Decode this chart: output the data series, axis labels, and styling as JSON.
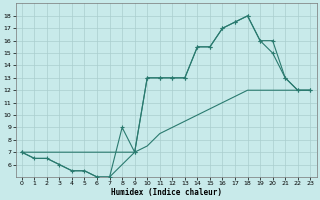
{
  "xlabel": "Humidex (Indice chaleur)",
  "line_color": "#2a7a6f",
  "bg_color": "#c8eaea",
  "grid_color": "#aacece",
  "xlim": [
    -0.5,
    23.5
  ],
  "ylim": [
    5,
    19
  ],
  "yticks": [
    6,
    7,
    8,
    9,
    10,
    11,
    12,
    13,
    14,
    15,
    16,
    17,
    18
  ],
  "xticks": [
    0,
    1,
    2,
    3,
    4,
    5,
    6,
    7,
    8,
    9,
    10,
    11,
    12,
    13,
    14,
    15,
    16,
    17,
    18,
    19,
    20,
    21,
    22,
    23
  ],
  "line1_x": [
    0,
    1,
    2,
    3,
    4,
    5,
    6,
    7,
    8,
    9,
    10,
    11,
    12,
    13,
    14,
    15,
    16,
    17,
    18,
    19,
    20,
    21,
    22,
    23
  ],
  "line1_y": [
    7,
    6.5,
    6.5,
    6,
    5.5,
    5.5,
    5,
    5,
    9,
    7,
    13,
    13,
    13,
    13,
    15.5,
    15.5,
    17,
    17.5,
    18,
    16,
    15,
    13,
    12,
    12
  ],
  "line2_x": [
    0,
    9,
    10,
    11,
    12,
    13,
    14,
    15,
    16,
    17,
    18,
    19,
    20,
    21,
    22,
    23
  ],
  "line2_y": [
    7,
    7,
    13,
    13,
    13,
    13,
    15.5,
    15.5,
    17,
    17.5,
    18,
    16,
    16,
    13,
    12,
    12
  ],
  "line3_x": [
    0,
    1,
    2,
    3,
    4,
    5,
    6,
    7,
    8,
    9,
    10,
    11,
    12,
    13,
    14,
    15,
    16,
    17,
    18,
    19,
    20,
    21,
    22,
    23
  ],
  "line3_y": [
    7,
    6.5,
    6.5,
    6,
    5.5,
    5.5,
    5,
    5,
    6,
    7,
    7.5,
    8.5,
    9,
    9.5,
    10,
    10.5,
    11,
    11.5,
    12,
    12,
    12,
    12,
    12,
    12
  ]
}
